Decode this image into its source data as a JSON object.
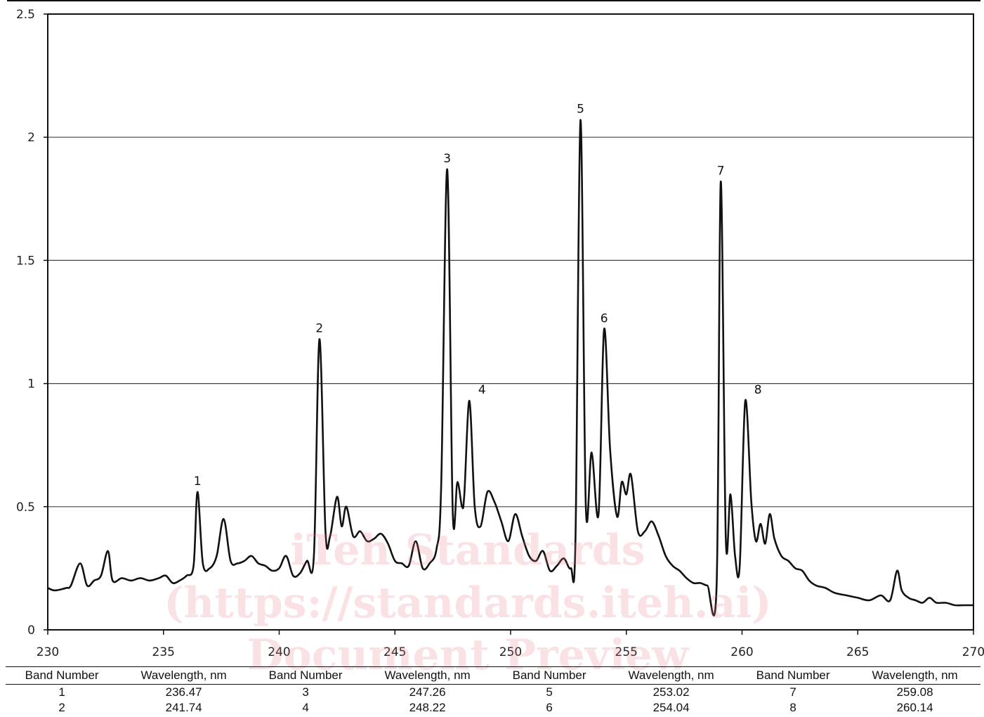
{
  "chart_data": {
    "type": "line",
    "title": "",
    "xlabel": "",
    "ylabel": "",
    "xlim": [
      230,
      270
    ],
    "ylim": [
      0,
      2.5
    ],
    "xticks": [
      "230",
      "235",
      "240",
      "245",
      "250",
      "255",
      "260",
      "265",
      "270"
    ],
    "yticks": [
      "0",
      "0.5",
      "1",
      "1.5",
      "2",
      "2.5"
    ],
    "grid": "horizontal",
    "line_color": "#111111",
    "series": [
      {
        "x": [
          230.0,
          230.3,
          230.8,
          231.0,
          231.4,
          231.7,
          232.0,
          232.3,
          232.6,
          232.8,
          233.2,
          233.6,
          234.0,
          234.4,
          234.8,
          235.1,
          235.4,
          235.7,
          236.0,
          236.3,
          236.47,
          236.7,
          237.0,
          237.3,
          237.6,
          237.9,
          238.2,
          238.5,
          238.8,
          239.1,
          239.4,
          239.7,
          240.0,
          240.3,
          240.6,
          240.9,
          241.2,
          241.5,
          241.74,
          242.0,
          242.2,
          242.5,
          242.7,
          242.9,
          243.2,
          243.5,
          243.8,
          244.1,
          244.4,
          244.7,
          245.0,
          245.3,
          245.6,
          245.9,
          246.2,
          246.5,
          246.8,
          247.0,
          247.26,
          247.5,
          247.7,
          247.9,
          248.0,
          248.22,
          248.45,
          248.7,
          249.0,
          249.3,
          249.6,
          249.9,
          250.2,
          250.5,
          250.8,
          251.1,
          251.4,
          251.7,
          252.0,
          252.3,
          252.6,
          252.8,
          253.02,
          253.25,
          253.5,
          253.8,
          254.04,
          254.3,
          254.6,
          254.8,
          255.0,
          255.2,
          255.5,
          255.8,
          256.1,
          256.4,
          256.7,
          257.0,
          257.3,
          257.6,
          257.9,
          258.2,
          258.5,
          258.9,
          259.08,
          259.3,
          259.5,
          259.7,
          259.9,
          260.14,
          260.4,
          260.6,
          260.8,
          261.0,
          261.2,
          261.4,
          261.7,
          262.0,
          262.3,
          262.6,
          262.9,
          263.2,
          263.6,
          264.0,
          264.5,
          265.0,
          265.5,
          266.0,
          266.4,
          266.7,
          266.9,
          267.2,
          267.5,
          267.8,
          268.1,
          268.4,
          268.8,
          269.2,
          269.6,
          270.0
        ],
        "y": [
          0.17,
          0.16,
          0.17,
          0.18,
          0.27,
          0.18,
          0.2,
          0.22,
          0.32,
          0.2,
          0.21,
          0.2,
          0.21,
          0.2,
          0.21,
          0.22,
          0.19,
          0.2,
          0.22,
          0.26,
          0.56,
          0.27,
          0.25,
          0.3,
          0.45,
          0.28,
          0.27,
          0.28,
          0.3,
          0.27,
          0.26,
          0.24,
          0.25,
          0.3,
          0.22,
          0.23,
          0.28,
          0.3,
          1.18,
          0.4,
          0.38,
          0.54,
          0.42,
          0.5,
          0.38,
          0.4,
          0.36,
          0.37,
          0.39,
          0.35,
          0.28,
          0.27,
          0.26,
          0.36,
          0.25,
          0.27,
          0.33,
          0.58,
          1.87,
          0.48,
          0.6,
          0.5,
          0.55,
          0.93,
          0.5,
          0.42,
          0.56,
          0.52,
          0.44,
          0.36,
          0.47,
          0.38,
          0.3,
          0.28,
          0.32,
          0.24,
          0.26,
          0.29,
          0.25,
          0.36,
          2.07,
          0.5,
          0.72,
          0.47,
          1.22,
          0.73,
          0.46,
          0.6,
          0.55,
          0.63,
          0.4,
          0.4,
          0.44,
          0.38,
          0.3,
          0.26,
          0.24,
          0.21,
          0.19,
          0.19,
          0.18,
          0.18,
          1.82,
          0.37,
          0.55,
          0.3,
          0.26,
          0.93,
          0.52,
          0.36,
          0.43,
          0.35,
          0.47,
          0.37,
          0.3,
          0.28,
          0.25,
          0.24,
          0.2,
          0.18,
          0.17,
          0.15,
          0.14,
          0.13,
          0.12,
          0.14,
          0.12,
          0.24,
          0.16,
          0.13,
          0.12,
          0.11,
          0.13,
          0.11,
          0.11,
          0.1,
          0.1,
          0.1
        ]
      }
    ],
    "annotations": [
      {
        "text": "1",
        "x": 236.47,
        "y": 0.56
      },
      {
        "text": "2",
        "x": 241.74,
        "y": 1.18
      },
      {
        "text": "3",
        "x": 247.26,
        "y": 1.87
      },
      {
        "text": "4",
        "x": 248.22,
        "y": 0.93
      },
      {
        "text": "5",
        "x": 253.02,
        "y": 2.07
      },
      {
        "text": "6",
        "x": 254.04,
        "y": 1.22
      },
      {
        "text": "7",
        "x": 259.08,
        "y": 1.82
      },
      {
        "text": "8",
        "x": 260.14,
        "y": 0.93
      }
    ]
  },
  "watermark": {
    "line1": "iTeh Standards",
    "line2": "(https://standards.iteh.ai)",
    "line3": "Document Preview"
  },
  "band_table": {
    "headers": [
      "Band Number",
      "Wavelength, nm",
      "Band Number",
      "Wavelength, nm",
      "Band Number",
      "Wavelength, nm",
      "Band Number",
      "Wavelength, nm"
    ],
    "rows": [
      [
        "1",
        "236.47",
        "3",
        "247.26",
        "5",
        "253.02",
        "7",
        "259.08"
      ],
      [
        "2",
        "241.74",
        "4",
        "248.22",
        "6",
        "254.04",
        "8",
        "260.14"
      ]
    ]
  }
}
